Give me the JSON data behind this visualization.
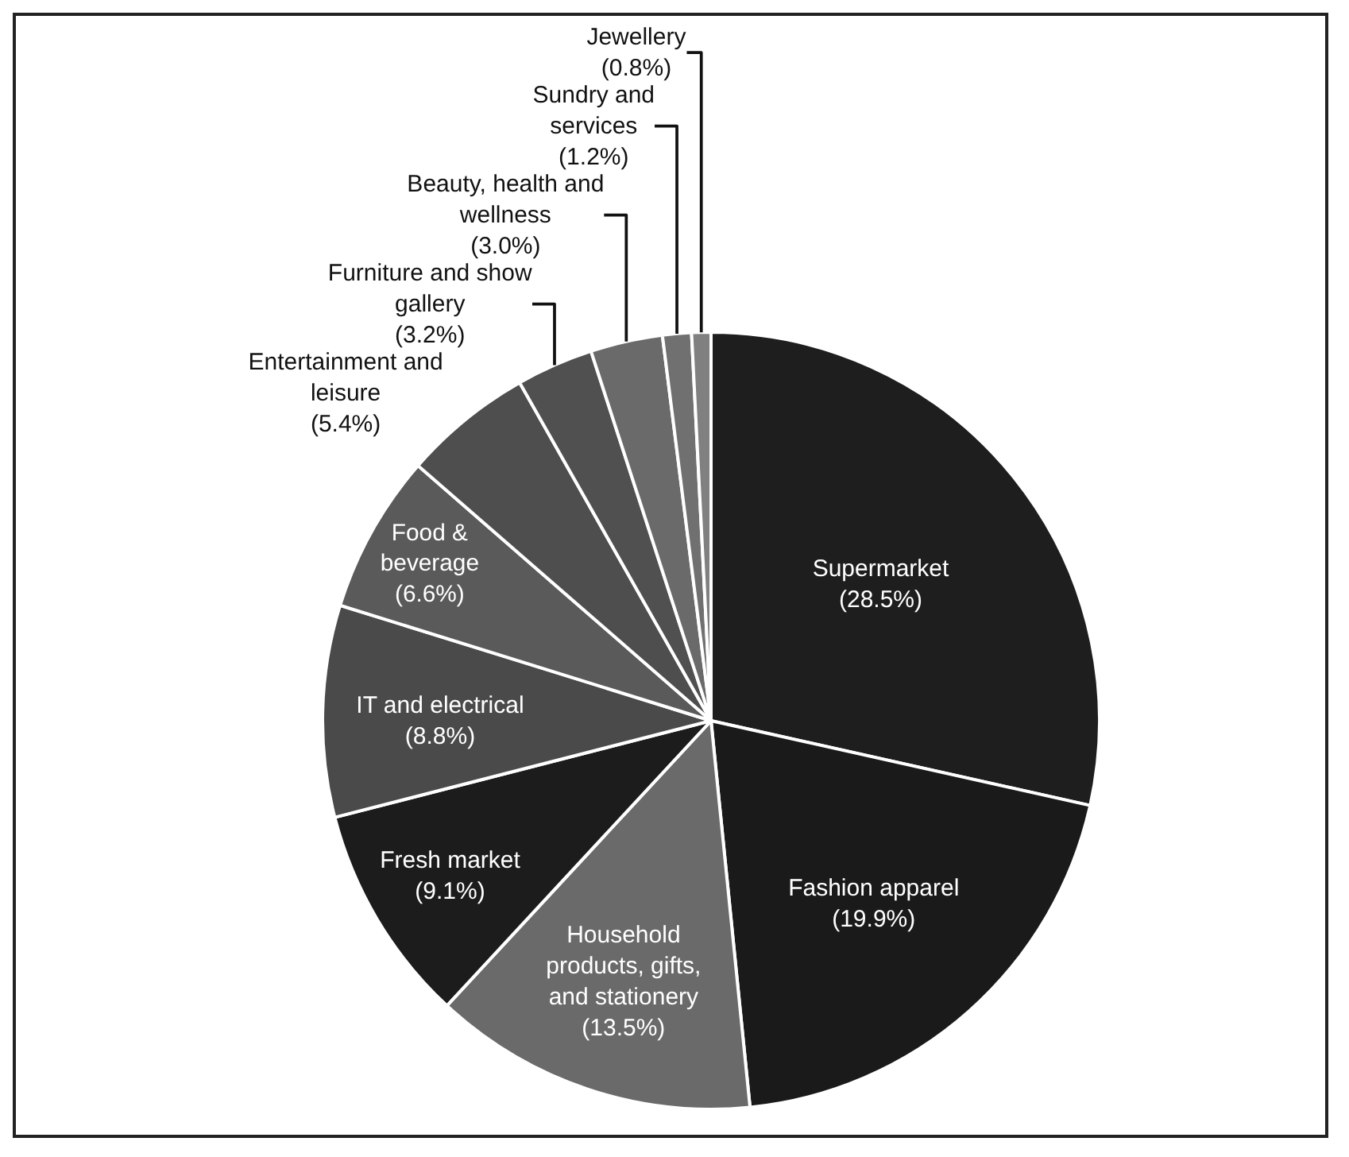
{
  "chart_data": {
    "type": "pie",
    "categories": [
      "Supermarket",
      "Fashion apparel",
      "Household products, gifts, and stationery",
      "Fresh market",
      "IT and electrical",
      "Food & beverage",
      "Entertainment and leisure",
      "Furniture and show gallery",
      "Beauty, health and wellness",
      "Sundry and services",
      "Jewellery"
    ],
    "values": [
      28.5,
      19.9,
      13.5,
      9.1,
      8.8,
      6.6,
      5.4,
      3.2,
      3.0,
      1.2,
      0.8
    ],
    "value_labels": [
      "(28.5%)",
      "(19.9%)",
      "(13.5%)",
      "(9.1%)",
      "(8.8%)",
      "(6.6%)",
      "(5.4%)",
      "(3.2%)",
      "(3.0%)",
      "(1.2%)",
      "(0.8%)"
    ],
    "colors": [
      "#1e1e1e",
      "#1a1a1a",
      "#6a6a6a",
      "#1c1c1c",
      "#4a4a4a",
      "#5a5a5a",
      "#4e4e4e",
      "#505050",
      "#6a6a6a",
      "#707070",
      "#808080"
    ],
    "legend": false
  }
}
